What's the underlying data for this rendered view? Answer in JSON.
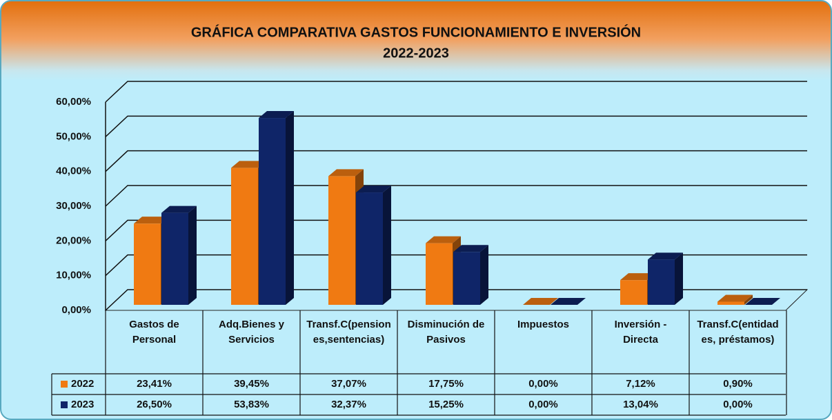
{
  "chart_data": {
    "type": "bar3d",
    "title": [
      "GRÁFICA COMPARATIVA GASTOS FUNCIONAMIENTO E INVERSIÓN",
      "2022-2023"
    ],
    "categories": [
      "Gastos de Personal",
      "Adq.Bienes y Servicios",
      "Transf.C(pensiones,sentencias)",
      "Disminución de Pasivos",
      "Impuestos",
      "Inversión - Directa",
      "Transf.C(entidades, préstamos)"
    ],
    "series": [
      {
        "name": "2022",
        "color": "#f07a12",
        "values": [
          23.41,
          39.45,
          37.07,
          17.75,
          0,
          7.12,
          0.9
        ],
        "value_labels": [
          "23,41%",
          "39,45%",
          "37,07%",
          "17,75%",
          "0,00%",
          "7,12%",
          "0,90%"
        ]
      },
      {
        "name": "2023",
        "color": "#0f2568",
        "values": [
          26.5,
          53.83,
          32.37,
          15.25,
          0,
          13.04,
          0
        ],
        "value_labels": [
          "26,50%",
          "53,83%",
          "32,37%",
          "15,25%",
          "0,00%",
          "13,04%",
          "0,00%"
        ]
      }
    ],
    "ylim": [
      0,
      60
    ],
    "yticks": [
      {
        "value": 0,
        "label": "0,00%"
      },
      {
        "value": 10,
        "label": "10,00%"
      },
      {
        "value": 20,
        "label": "20,00%"
      },
      {
        "value": 30,
        "label": "30,00%"
      },
      {
        "value": 40,
        "label": "40,00%"
      },
      {
        "value": 50,
        "label": "50,00%"
      },
      {
        "value": 60,
        "label": "60,00%"
      }
    ],
    "grid": true
  }
}
